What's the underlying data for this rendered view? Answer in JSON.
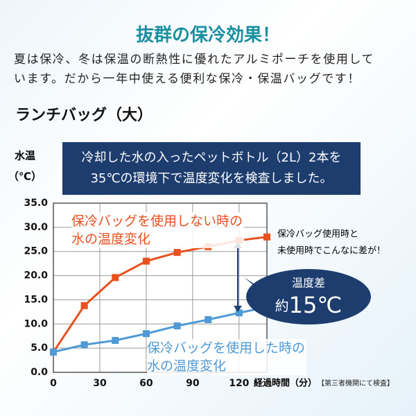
{
  "header": {
    "title": "抜群の保冷効果！",
    "paragraph": [
      "夏は保冷、冬は保温の断熱性に優れたアルミポーチを使用して",
      "います。だから一年中使える便利な保冷・保温バッグです！"
    ],
    "product": "ランチバッグ（大）"
  },
  "chart_data": {
    "type": "line",
    "y_label": [
      "水温",
      "（℃）"
    ],
    "box_text": [
      "冷却した水の入ったペットボトル（2L）2本を",
      "35℃の環境下で温度変化を検査しました。"
    ],
    "annotation": [
      "保冷バッグ使用時と",
      "未使用時でこんなに差が！"
    ],
    "callout": {
      "small": "温度差",
      "prefix": "約",
      "big": "15℃"
    },
    "x_label": "経過時間（分）",
    "note": "【第三者機関にて検査】",
    "x": [
      0,
      20,
      40,
      60,
      80,
      100,
      120,
      138
    ],
    "series": [
      {
        "name": "保冷バッグを使用しない時の水の温度変化",
        "color": "#e8501e",
        "values": [
          4.2,
          13.8,
          19.6,
          23.0,
          24.8,
          26.0,
          27.3,
          28.0
        ]
      },
      {
        "name": "保冷バッグを使用した時の水の温度変化",
        "color": "#4f9ad6",
        "values": [
          4.2,
          5.7,
          6.6,
          8.0,
          9.6,
          10.9,
          12.3,
          13.5
        ]
      }
    ],
    "xlim": [
      0,
      138
    ],
    "xticks": [
      0,
      30,
      60,
      90,
      120
    ],
    "ylim": [
      0,
      35
    ],
    "yticks": [
      {
        "value": 0,
        "label": "0.0"
      },
      {
        "value": 5,
        "label": "5.0"
      },
      {
        "value": 10,
        "label": "10.0"
      },
      {
        "value": 15,
        "label": "15.0"
      },
      {
        "value": 20,
        "label": "20.0"
      },
      {
        "value": 25,
        "label": "25.0"
      },
      {
        "value": 30,
        "label": "30.0"
      },
      {
        "value": 35,
        "label": "35.0"
      }
    ],
    "grid": true
  }
}
